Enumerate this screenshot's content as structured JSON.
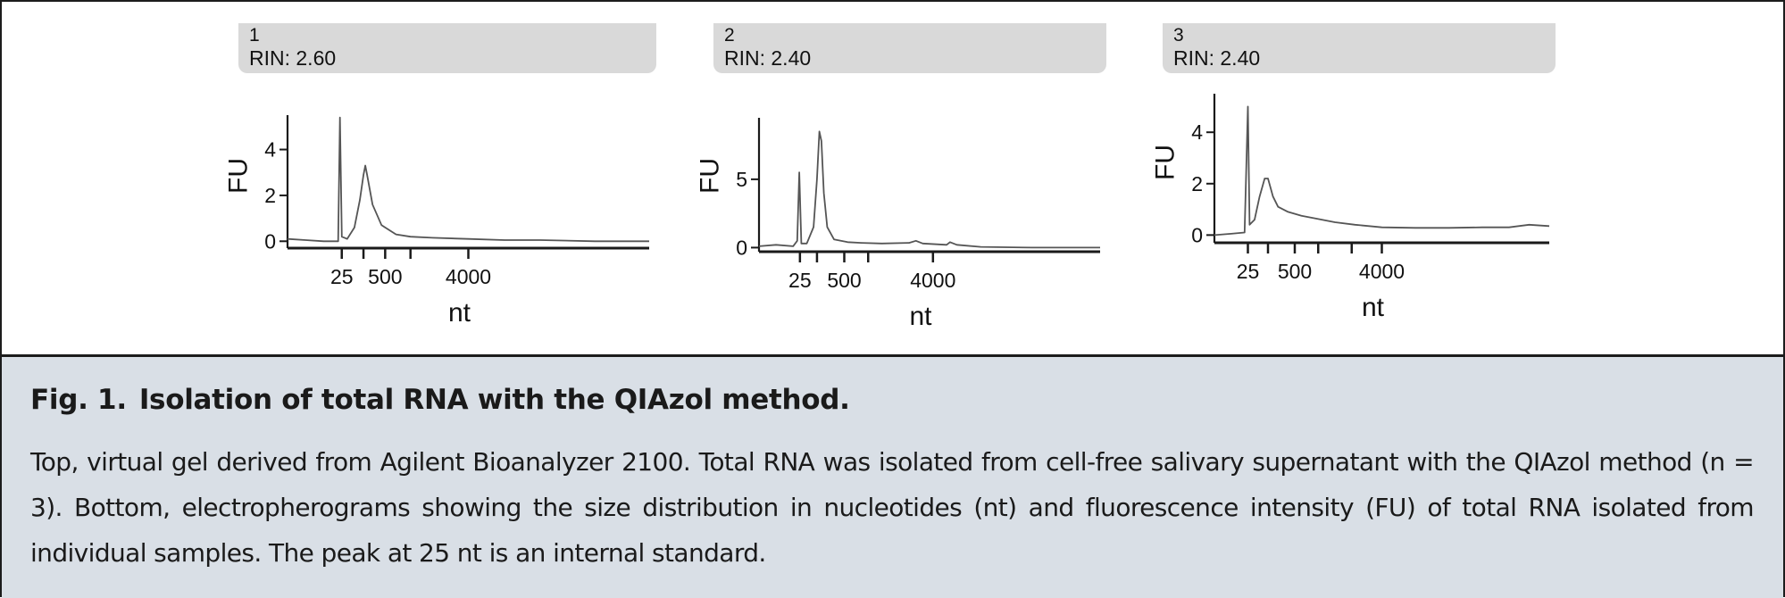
{
  "panels": [
    {
      "number": "1",
      "rin": "RIN: 2.60",
      "chart_data": {
        "type": "line",
        "xlabel": "nt",
        "ylabel": "FU",
        "ytick_labels": [
          "0",
          "2",
          "4"
        ],
        "ylim": [
          -0.3,
          5.5
        ],
        "xtick_labels": [
          "25",
          "500",
          "4000"
        ],
        "labeled_tick_positions": [
          0.15,
          0.27,
          0.5
        ],
        "unlabeled_tick_positions": [
          0.21,
          0.34
        ],
        "series": [
          {
            "values": [
              [
                0.0,
                0.1
              ],
              [
                0.05,
                0.05
              ],
              [
                0.1,
                0.0
              ],
              [
                0.14,
                0.0
              ],
              [
                0.145,
                5.4
              ],
              [
                0.15,
                0.2
              ],
              [
                0.165,
                0.1
              ],
              [
                0.185,
                0.6
              ],
              [
                0.2,
                1.8
              ],
              [
                0.21,
                2.9
              ],
              [
                0.215,
                3.3
              ],
              [
                0.22,
                2.9
              ],
              [
                0.235,
                1.6
              ],
              [
                0.26,
                0.7
              ],
              [
                0.3,
                0.3
              ],
              [
                0.34,
                0.2
              ],
              [
                0.4,
                0.15
              ],
              [
                0.5,
                0.1
              ],
              [
                0.6,
                0.05
              ],
              [
                0.7,
                0.05
              ],
              [
                0.85,
                0.0
              ],
              [
                1.0,
                0.0
              ]
            ]
          }
        ]
      }
    },
    {
      "number": "2",
      "rin": "RIN: 2.40",
      "chart_data": {
        "type": "line",
        "xlabel": "nt",
        "ylabel": "FU",
        "ytick_labels": [
          "0",
          "5"
        ],
        "ylim": [
          -0.3,
          9.5
        ],
        "xtick_labels": [
          "25",
          "500",
          "4000"
        ],
        "labeled_tick_positions": [
          0.12,
          0.25,
          0.51
        ],
        "unlabeled_tick_positions": [
          0.17,
          0.32
        ],
        "series": [
          {
            "values": [
              [
                0.0,
                0.1
              ],
              [
                0.05,
                0.2
              ],
              [
                0.1,
                0.1
              ],
              [
                0.112,
                0.5
              ],
              [
                0.118,
                5.5
              ],
              [
                0.124,
                0.3
              ],
              [
                0.14,
                0.3
              ],
              [
                0.16,
                1.5
              ],
              [
                0.17,
                5.0
              ],
              [
                0.177,
                8.5
              ],
              [
                0.183,
                7.8
              ],
              [
                0.19,
                4.0
              ],
              [
                0.2,
                1.5
              ],
              [
                0.22,
                0.6
              ],
              [
                0.26,
                0.4
              ],
              [
                0.3,
                0.35
              ],
              [
                0.36,
                0.3
              ],
              [
                0.44,
                0.35
              ],
              [
                0.46,
                0.5
              ],
              [
                0.48,
                0.3
              ],
              [
                0.55,
                0.2
              ],
              [
                0.56,
                0.4
              ],
              [
                0.58,
                0.2
              ],
              [
                0.65,
                0.05
              ],
              [
                0.8,
                0.0
              ],
              [
                1.0,
                0.0
              ]
            ]
          }
        ]
      }
    },
    {
      "number": "3",
      "rin": "RIN: 2.40",
      "chart_data": {
        "type": "line",
        "xlabel": "nt",
        "ylabel": "FU",
        "ytick_labels": [
          "0",
          "2",
          "4"
        ],
        "ylim": [
          -0.3,
          5.5
        ],
        "xtick_labels": [
          "25",
          "500",
          "4000"
        ],
        "labeled_tick_positions": [
          0.1,
          0.24,
          0.5
        ],
        "unlabeled_tick_positions": [
          0.16,
          0.31,
          0.41
        ],
        "series": [
          {
            "values": [
              [
                0.0,
                0.0
              ],
              [
                0.05,
                0.05
              ],
              [
                0.09,
                0.1
              ],
              [
                0.1,
                5.0
              ],
              [
                0.105,
                0.4
              ],
              [
                0.12,
                0.6
              ],
              [
                0.135,
                1.5
              ],
              [
                0.15,
                2.2
              ],
              [
                0.16,
                2.2
              ],
              [
                0.175,
                1.5
              ],
              [
                0.19,
                1.1
              ],
              [
                0.22,
                0.9
              ],
              [
                0.26,
                0.75
              ],
              [
                0.3,
                0.65
              ],
              [
                0.36,
                0.5
              ],
              [
                0.42,
                0.4
              ],
              [
                0.5,
                0.3
              ],
              [
                0.6,
                0.28
              ],
              [
                0.7,
                0.28
              ],
              [
                0.8,
                0.3
              ],
              [
                0.88,
                0.3
              ],
              [
                0.94,
                0.4
              ],
              [
                1.0,
                0.35
              ]
            ]
          }
        ]
      }
    }
  ],
  "caption": {
    "fig_label": "Fig. 1.",
    "title": "Isolation of total RNA with the QIAzol method.",
    "body": "Top, virtual gel derived from Agilent Bioanalyzer 2100. Total RNA was isolated from cell-free salivary supernatant with the QIAzol method (n = 3). Bottom, electropherograms showing the size distribution in nucleotides (nt) and fluorescence intensity (FU) of total RNA isolated from individual samples. The peak at 25 nt is an internal standard."
  },
  "colors": {
    "trace": "#555555",
    "axis": "#1a1a1a",
    "tab": "#d9d9d9",
    "caption_bg": "#d9dfe6"
  }
}
